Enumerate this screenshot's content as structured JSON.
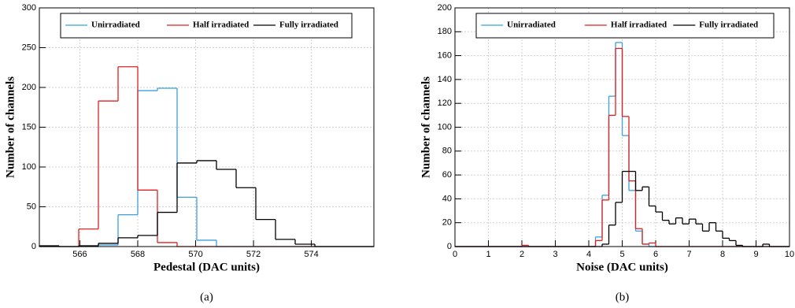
{
  "chart_data": [
    {
      "type": "histogram",
      "xlabel": "Pedestal (DAC units)",
      "ylabel": "Number of channels",
      "caption": "(a)",
      "bins": [
        564.6,
        565.28,
        565.96,
        566.64,
        567.32,
        568,
        568.68,
        569.36,
        570.04,
        570.72,
        571.4,
        572.08,
        572.76,
        573.44,
        574.12,
        574.8,
        575.48,
        576.16
      ],
      "series": [
        {
          "name": "Unirradiated",
          "color": "#3b9fe0",
          "values": [
            0,
            0,
            0,
            2,
            40,
            196,
            199,
            62,
            8,
            0,
            0,
            0,
            0,
            0,
            0,
            0,
            0
          ]
        },
        {
          "name": "Half irradiated",
          "color": "#e02020",
          "values": [
            0,
            0,
            22,
            183,
            226,
            71,
            5,
            0,
            0,
            0,
            0,
            0,
            0,
            0,
            0,
            0,
            0
          ]
        },
        {
          "name": "Fully irradiated",
          "color": "#000000",
          "values": [
            1,
            0,
            1,
            4,
            11,
            14,
            43,
            105,
            108,
            97,
            74,
            34,
            9,
            3,
            0,
            0,
            0
          ]
        }
      ],
      "xlim": [
        564.6,
        576.16
      ],
      "xticks": [
        566,
        568,
        570,
        572,
        574
      ],
      "ylim": [
        0,
        300
      ],
      "yticks": [
        0,
        50,
        100,
        150,
        200,
        250,
        300
      ],
      "grid": true
    },
    {
      "type": "histogram",
      "xlabel": "Noise (DAC units)",
      "ylabel": "Number of channels",
      "caption": "(b)",
      "bins": [
        0,
        0.2,
        0.4,
        0.6,
        0.8,
        1,
        1.2,
        1.4,
        1.6,
        1.8,
        2,
        2.2,
        2.4,
        2.6,
        2.8,
        3,
        3.2,
        3.4,
        3.6,
        3.8,
        4,
        4.2,
        4.4,
        4.6,
        4.8,
        5,
        5.2,
        5.4,
        5.6,
        5.8,
        6,
        6.2,
        6.4,
        6.6,
        6.8,
        7,
        7.2,
        7.4,
        7.6,
        7.8,
        8,
        8.2,
        8.4,
        8.6,
        8.8,
        9,
        9.2,
        9.4,
        9.6,
        9.8,
        10
      ],
      "series": [
        {
          "name": "Unirradiated",
          "color": "#3b9fe0",
          "values": [
            0,
            0,
            0,
            0,
            0,
            0,
            0,
            0,
            0,
            0,
            0,
            0,
            0,
            0,
            0,
            0,
            0,
            0,
            0,
            0,
            0,
            8,
            43,
            126,
            171,
            93,
            47,
            13,
            2,
            0,
            0,
            0,
            0,
            0,
            0,
            0,
            0,
            0,
            0,
            0,
            0,
            0,
            0,
            0,
            0,
            0,
            0,
            0,
            0,
            0
          ]
        },
        {
          "name": "Half irradiated",
          "color": "#e02020",
          "values": [
            0,
            0,
            0,
            0,
            0,
            0,
            0,
            0,
            0,
            0,
            1,
            0,
            0,
            0,
            0,
            0,
            0,
            0,
            0,
            0,
            0,
            5,
            39,
            110,
            166,
            109,
            55,
            15,
            2,
            3,
            0,
            0,
            0,
            0,
            0,
            0,
            0,
            0,
            0,
            0,
            0,
            0,
            0,
            0,
            0,
            0,
            0,
            0,
            0,
            0
          ]
        },
        {
          "name": "Fully irradiated",
          "color": "#000000",
          "values": [
            0,
            0,
            0,
            0,
            0,
            0,
            0,
            0,
            0,
            0,
            0,
            0,
            0,
            0,
            0,
            0,
            0,
            0,
            0,
            0,
            0,
            0,
            2,
            18,
            37,
            63,
            63,
            47,
            50,
            34,
            29,
            22,
            19,
            24,
            19,
            23,
            19,
            13,
            20,
            13,
            7,
            5,
            1,
            0,
            0,
            0,
            2,
            0,
            0,
            0
          ]
        }
      ],
      "xlim": [
        0,
        10
      ],
      "xticks": [
        0,
        1,
        2,
        3,
        4,
        5,
        6,
        7,
        8,
        9,
        10
      ],
      "ylim": [
        0,
        200
      ],
      "yticks": [
        0,
        20,
        40,
        60,
        80,
        100,
        120,
        140,
        160,
        180,
        200
      ],
      "grid": true
    }
  ]
}
